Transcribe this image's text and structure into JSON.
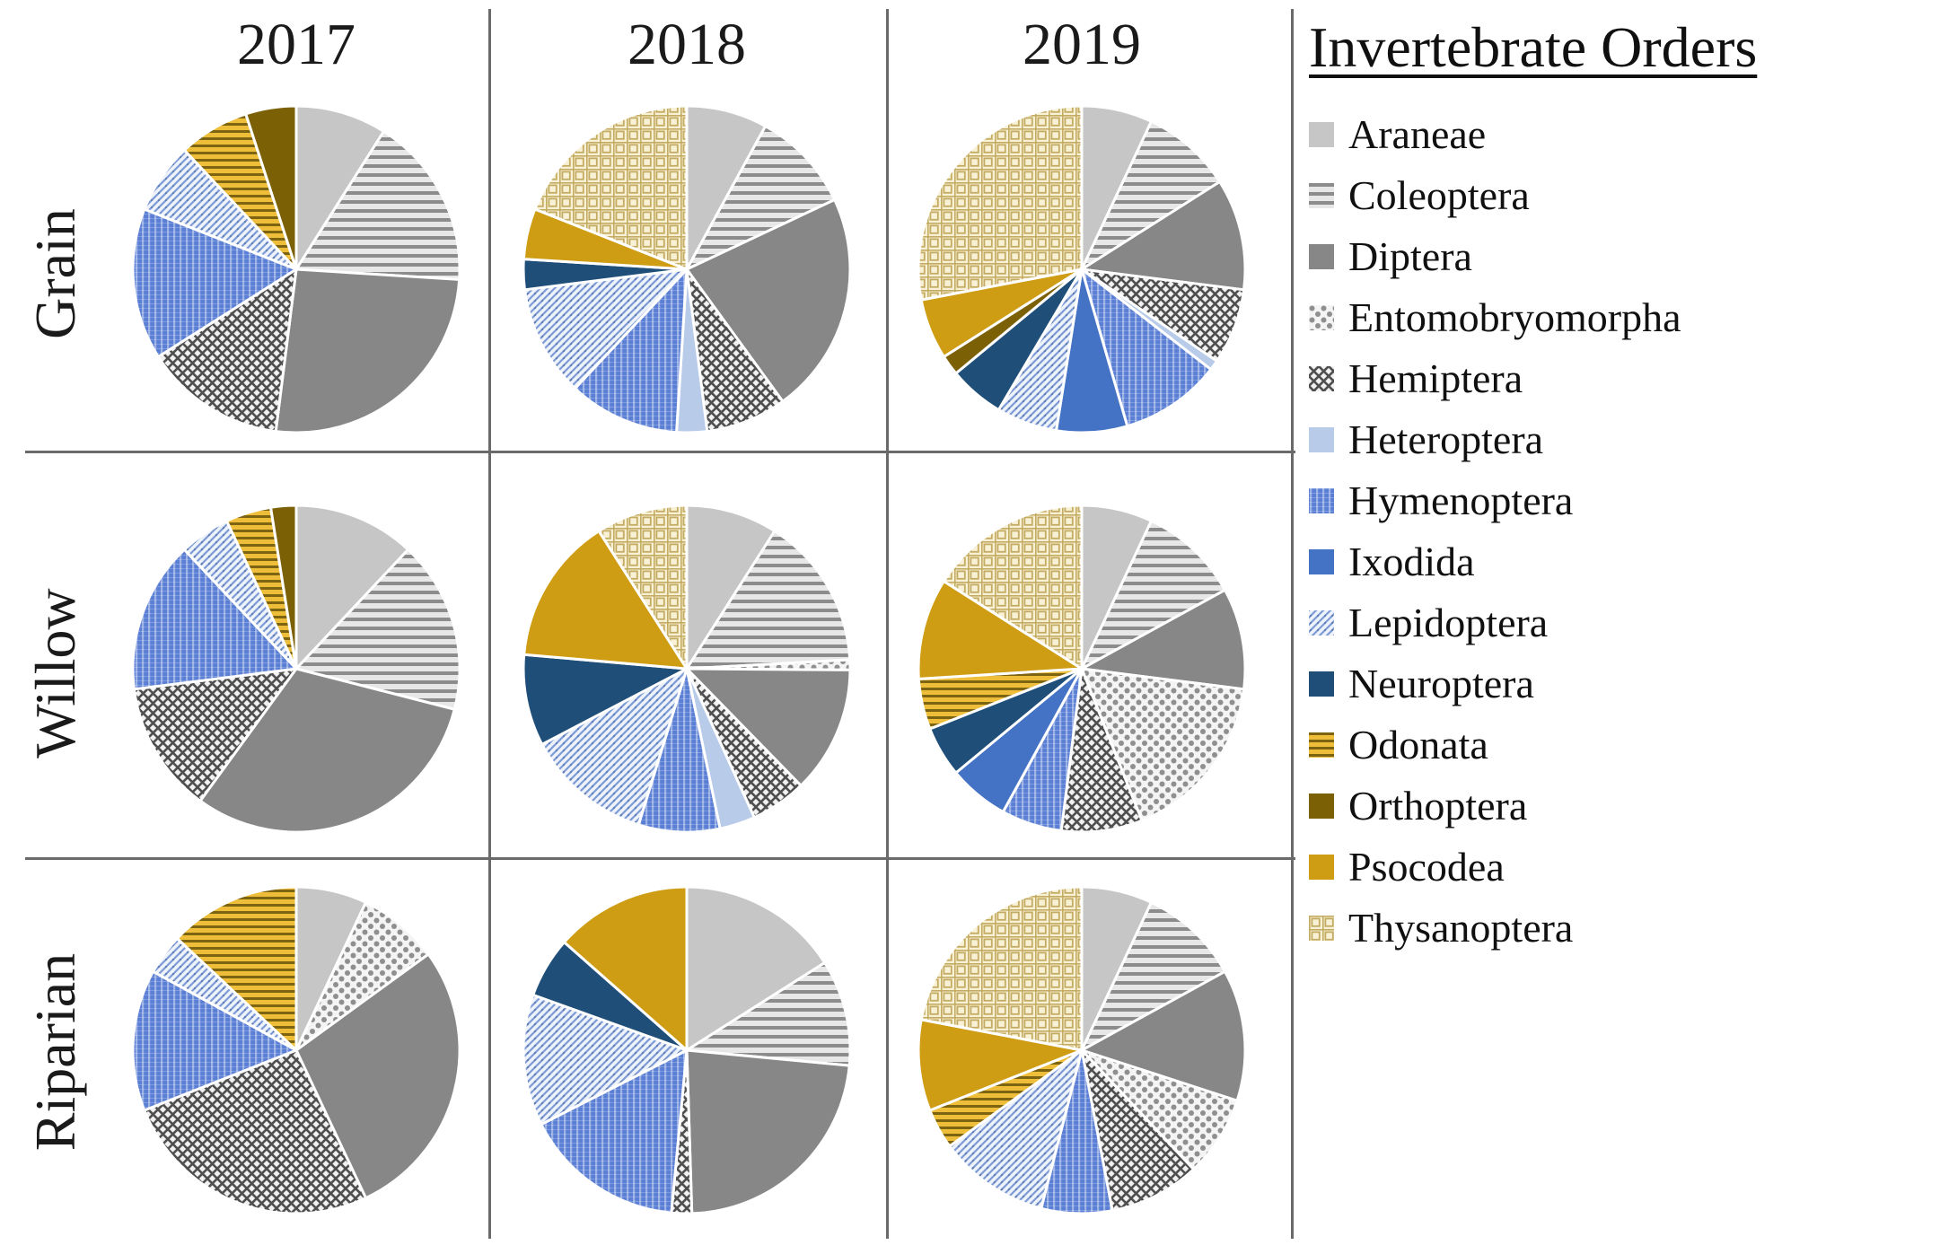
{
  "figure": {
    "background": "#ffffff",
    "divider_color": "#6a6a6a"
  },
  "grid": {
    "column_headers": [
      "2017",
      "2018",
      "2019"
    ],
    "row_labels": [
      "Grain",
      "Willow",
      "Riparian"
    ]
  },
  "legend": {
    "title": "Invertebrate Orders",
    "items": [
      "Araneae",
      "Coleoptera",
      "Diptera",
      "Entomobryomorpha",
      "Hemiptera",
      "Heteroptera",
      "Hymenoptera",
      "Ixodida",
      "Lepidoptera",
      "Neuroptera",
      "Odonata",
      "Orthoptera",
      "Psocodea",
      "Thysanoptera"
    ]
  },
  "orders_style": {
    "Araneae": {
      "fill": "solid",
      "color": "#c6c6c6"
    },
    "Coleoptera": {
      "fill": "hstripes",
      "bg": "#e7e7e7",
      "fg": "#8c8c8c",
      "tile": 10,
      "band": 4
    },
    "Diptera": {
      "fill": "solid",
      "color": "#878787"
    },
    "Entomobryomorpha": {
      "fill": "dots",
      "bg": "#f4f4f4",
      "fg": "#8f8f8f"
    },
    "Hemiptera": {
      "fill": "crosshatch",
      "bg": "#f1f1f1",
      "fg": "#4f4f4f"
    },
    "Heteroptera": {
      "fill": "solid",
      "color": "#b8cbe9"
    },
    "Hymenoptera": {
      "fill": "vstripes",
      "bg": "#5b7fd4",
      "fg": "#9db3e6"
    },
    "Ixodida": {
      "fill": "solid",
      "color": "#4472c4"
    },
    "Lepidoptera": {
      "fill": "diagonal",
      "bg": "#eef2fb",
      "fg": "#7d9bd6",
      "dot": "#44597e"
    },
    "Neuroptera": {
      "fill": "solid",
      "color": "#1f4e79"
    },
    "Odonata": {
      "fill": "hstripes",
      "bg": "#eebe3a",
      "fg": "#7d6411",
      "tile": 8,
      "band": 3
    },
    "Orthoptera": {
      "fill": "solid",
      "color": "#7c6006"
    },
    "Psocodea": {
      "fill": "solid",
      "color": "#cf9d13"
    },
    "Thysanoptera": {
      "fill": "plaid",
      "bg": "#f8f1d6",
      "fg": "#c3ab62"
    }
  },
  "chart_data": [
    {
      "type": "pie",
      "row": "Grain",
      "year": "2017",
      "unit": "percent (estimated)",
      "slices": [
        {
          "order": "Araneae",
          "value": 9
        },
        {
          "order": "Coleoptera",
          "value": 17
        },
        {
          "order": "Diptera",
          "value": 26
        },
        {
          "order": "Hemiptera",
          "value": 14
        },
        {
          "order": "Hymenoptera",
          "value": 15
        },
        {
          "order": "Lepidoptera",
          "value": 7
        },
        {
          "order": "Odonata",
          "value": 7
        },
        {
          "order": "Orthoptera",
          "value": 5
        }
      ]
    },
    {
      "type": "pie",
      "row": "Grain",
      "year": "2018",
      "unit": "percent (estimated)",
      "slices": [
        {
          "order": "Araneae",
          "value": 8
        },
        {
          "order": "Coleoptera",
          "value": 10
        },
        {
          "order": "Diptera",
          "value": 22
        },
        {
          "order": "Hemiptera",
          "value": 8
        },
        {
          "order": "Heteroptera",
          "value": 3
        },
        {
          "order": "Hymenoptera",
          "value": 11
        },
        {
          "order": "Lepidoptera",
          "value": 11
        },
        {
          "order": "Neuroptera",
          "value": 3
        },
        {
          "order": "Psocodea",
          "value": 5
        },
        {
          "order": "Thysanoptera",
          "value": 19
        }
      ]
    },
    {
      "type": "pie",
      "row": "Grain",
      "year": "2019",
      "unit": "percent (estimated)",
      "slices": [
        {
          "order": "Araneae",
          "value": 7
        },
        {
          "order": "Coleoptera",
          "value": 9
        },
        {
          "order": "Diptera",
          "value": 11
        },
        {
          "order": "Hemiptera",
          "value": 7.5
        },
        {
          "order": "Heteroptera",
          "value": 1
        },
        {
          "order": "Hymenoptera",
          "value": 10
        },
        {
          "order": "Ixodida",
          "value": 7
        },
        {
          "order": "Lepidoptera",
          "value": 6
        },
        {
          "order": "Neuroptera",
          "value": 5.5
        },
        {
          "order": "Orthoptera",
          "value": 2
        },
        {
          "order": "Psocodea",
          "value": 6
        },
        {
          "order": "Thysanoptera",
          "value": 28
        }
      ]
    },
    {
      "type": "pie",
      "row": "Willow",
      "year": "2017",
      "unit": "percent (estimated)",
      "slices": [
        {
          "order": "Araneae",
          "value": 12
        },
        {
          "order": "Coleoptera",
          "value": 17
        },
        {
          "order": "Diptera",
          "value": 31
        },
        {
          "order": "Hemiptera",
          "value": 13
        },
        {
          "order": "Hymenoptera",
          "value": 15
        },
        {
          "order": "Lepidoptera",
          "value": 5
        },
        {
          "order": "Odonata",
          "value": 4.5
        },
        {
          "order": "Orthoptera",
          "value": 2.5
        }
      ]
    },
    {
      "type": "pie",
      "row": "Willow",
      "year": "2018",
      "unit": "percent (estimated)",
      "slices": [
        {
          "order": "Araneae",
          "value": 9
        },
        {
          "order": "Coleoptera",
          "value": 15
        },
        {
          "order": "Entomobryomorpha",
          "value": 1
        },
        {
          "order": "Diptera",
          "value": 12.5
        },
        {
          "order": "Hemiptera",
          "value": 5.5
        },
        {
          "order": "Heteroptera",
          "value": 3.5
        },
        {
          "order": "Hymenoptera",
          "value": 8
        },
        {
          "order": "Lepidoptera",
          "value": 12.5
        },
        {
          "order": "Neuroptera",
          "value": 9
        },
        {
          "order": "Psocodea",
          "value": 14.5
        },
        {
          "order": "Thysanoptera",
          "value": 9
        }
      ]
    },
    {
      "type": "pie",
      "row": "Willow",
      "year": "2019",
      "unit": "percent (estimated)",
      "slices": [
        {
          "order": "Araneae",
          "value": 7
        },
        {
          "order": "Coleoptera",
          "value": 10
        },
        {
          "order": "Diptera",
          "value": 10
        },
        {
          "order": "Entomobryomorpha",
          "value": 17
        },
        {
          "order": "Hemiptera",
          "value": 8
        },
        {
          "order": "Hymenoptera",
          "value": 6
        },
        {
          "order": "Ixodida",
          "value": 6
        },
        {
          "order": "Neuroptera",
          "value": 5
        },
        {
          "order": "Odonata",
          "value": 5
        },
        {
          "order": "Psocodea",
          "value": 10
        },
        {
          "order": "Thysanoptera",
          "value": 16
        }
      ]
    },
    {
      "type": "pie",
      "row": "Riparian",
      "year": "2017",
      "unit": "percent (estimated)",
      "slices": [
        {
          "order": "Araneae",
          "value": 7
        },
        {
          "order": "Entomobryomorpha",
          "value": 8
        },
        {
          "order": "Diptera",
          "value": 28
        },
        {
          "order": "Hemiptera",
          "value": 26
        },
        {
          "order": "Hymenoptera",
          "value": 14
        },
        {
          "order": "Lepidoptera",
          "value": 4
        },
        {
          "order": "Odonata",
          "value": 13
        }
      ]
    },
    {
      "type": "pie",
      "row": "Riparian",
      "year": "2018",
      "unit": "percent (estimated)",
      "slices": [
        {
          "order": "Araneae",
          "value": 16
        },
        {
          "order": "Coleoptera",
          "value": 10.5
        },
        {
          "order": "Diptera",
          "value": 23
        },
        {
          "order": "Hemiptera",
          "value": 2
        },
        {
          "order": "Hymenoptera",
          "value": 16
        },
        {
          "order": "Lepidoptera",
          "value": 13
        },
        {
          "order": "Neuroptera",
          "value": 6
        },
        {
          "order": "Psocodea",
          "value": 13.5
        }
      ]
    },
    {
      "type": "pie",
      "row": "Riparian",
      "year": "2019",
      "unit": "percent (estimated)",
      "slices": [
        {
          "order": "Araneae",
          "value": 7
        },
        {
          "order": "Coleoptera",
          "value": 10
        },
        {
          "order": "Diptera",
          "value": 13
        },
        {
          "order": "Entomobryomorpha",
          "value": 8
        },
        {
          "order": "Hemiptera",
          "value": 9
        },
        {
          "order": "Hymenoptera",
          "value": 7
        },
        {
          "order": "Lepidoptera",
          "value": 11
        },
        {
          "order": "Odonata",
          "value": 4
        },
        {
          "order": "Psocodea",
          "value": 9
        },
        {
          "order": "Thysanoptera",
          "value": 22
        }
      ]
    }
  ],
  "layout_hints": {
    "pie_start_angle": "12 o'clock, clockwise",
    "legend_position": "right",
    "slice_separator_color": "#ffffff"
  }
}
